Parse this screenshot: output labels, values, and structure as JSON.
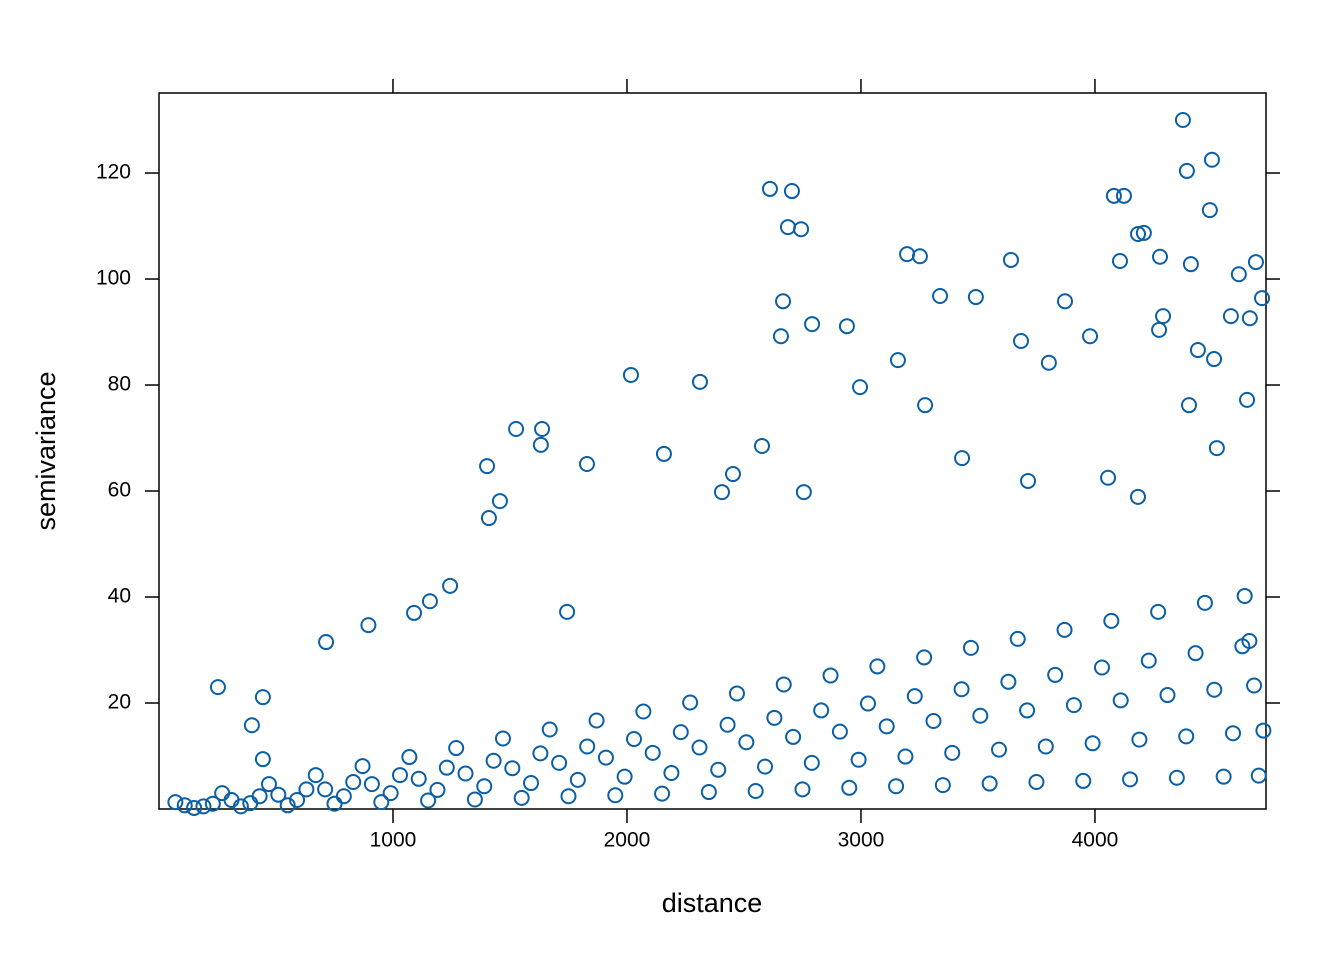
{
  "chart_data": {
    "type": "scatter",
    "xlabel": "distance",
    "ylabel": "semivariance",
    "xlim": [
      0,
      4731
    ],
    "ylim": [
      0,
      135.1
    ],
    "xticks": [
      1000,
      2000,
      3000,
      4000
    ],
    "yticks": [
      20,
      40,
      60,
      80,
      100,
      120
    ],
    "series": [
      {
        "color": "#0b5fa5",
        "x": [
          252,
          444,
          4376,
          4500,
          4393,
          4491,
          4081,
          4124,
          2611,
          2705,
          2688,
          2744,
          3197,
          3252,
          3641,
          4278,
          4410,
          4184,
          4209,
          4107,
          4688,
          4615,
          2667,
          2658,
          2791,
          2940,
          3338,
          3491,
          3872,
          2017,
          2312,
          2996,
          1637,
          1526,
          1632,
          1402,
          1829,
          1457,
          1410,
          2577,
          3274,
          3158,
          3684,
          3803,
          4274,
          4509,
          4662,
          4581,
          4714,
          4440,
          4291,
          3979,
          1244,
          1090,
          895,
          714,
          444,
          397,
          1158,
          1744,
          2158,
          2406,
          2756,
          2453,
          3432,
          3714,
          4056,
          4184,
          4402,
          4650,
          4521,
          150,
          190,
          110,
          230,
          70,
          350,
          390,
          310,
          430,
          270,
          550,
          590,
          510,
          630,
          470,
          750,
          790,
          710,
          830,
          670,
          950,
          990,
          910,
          1030,
          870,
          1150,
          1190,
          1110,
          1230,
          1070,
          1350,
          1390,
          1310,
          1430,
          1270,
          1550,
          1590,
          1510,
          1630,
          1470,
          1750,
          1790,
          1710,
          1830,
          1670,
          1950,
          1990,
          1910,
          2030,
          1870,
          2150,
          2190,
          2110,
          2230,
          2070,
          2350,
          2390,
          2310,
          2430,
          2270,
          2550,
          2590,
          2510,
          2630,
          2470,
          2750,
          2790,
          2710,
          2830,
          2670,
          2950,
          2990,
          2910,
          3030,
          2870,
          3150,
          3190,
          3110,
          3230,
          3070,
          3350,
          3390,
          3310,
          3430,
          3270,
          3550,
          3590,
          3510,
          3630,
          3470,
          3750,
          3790,
          3710,
          3830,
          3670,
          3950,
          3990,
          3910,
          4030,
          3870,
          4150,
          4190,
          4110,
          4230,
          4070,
          4350,
          4390,
          4310,
          4430,
          4270,
          4550,
          4590,
          4510,
          4630,
          4470,
          4700,
          4720,
          4680,
          4660,
          4640
        ],
        "values": [
          23,
          9.4,
          130,
          122.5,
          120.4,
          113,
          115.7,
          115.7,
          117,
          116.6,
          109.8,
          109.4,
          104.7,
          104.3,
          103.6,
          104.2,
          102.8,
          108.5,
          108.7,
          103.4,
          103.2,
          100.9,
          95.8,
          89.2,
          91.5,
          91.1,
          96.8,
          96.6,
          95.8,
          81.9,
          80.6,
          79.6,
          71.7,
          71.7,
          68.7,
          64.7,
          65.1,
          58.1,
          54.9,
          68.5,
          76.2,
          84.7,
          88.3,
          84.2,
          90.4,
          84.9,
          92.6,
          93,
          96.4,
          86.6,
          93,
          89.2,
          42.1,
          37,
          34.7,
          31.5,
          21.1,
          15.8,
          39.2,
          37.2,
          67,
          59.8,
          59.8,
          63.2,
          66.2,
          61.9,
          62.5,
          58.9,
          76.2,
          77.2,
          68.1,
          0.2,
          0.5,
          0.7,
          1.0,
          1.3,
          0.5,
          1.1,
          1.7,
          2.4,
          3.0,
          0.7,
          1.7,
          2.7,
          3.7,
          4.7,
          1.0,
          2.4,
          3.7,
          5.1,
          6.4,
          1.3,
          3.0,
          4.7,
          6.4,
          8.1,
          1.6,
          3.6,
          5.7,
          7.8,
          9.8,
          1.8,
          4.3,
          6.7,
          9.1,
          11.5,
          2.1,
          4.9,
          7.7,
          10.5,
          13.3,
          2.4,
          5.5,
          8.7,
          11.8,
          15.0,
          2.6,
          6.1,
          9.7,
          13.2,
          16.7,
          2.9,
          6.8,
          10.6,
          14.5,
          18.4,
          3.2,
          7.4,
          11.6,
          15.9,
          20.1,
          3.4,
          8.0,
          12.6,
          17.2,
          21.8,
          3.7,
          8.7,
          13.6,
          18.6,
          23.5,
          4.0,
          9.3,
          14.6,
          19.9,
          25.2,
          4.3,
          9.9,
          15.6,
          21.3,
          26.9,
          4.5,
          10.6,
          16.6,
          22.6,
          28.6,
          4.8,
          11.2,
          17.6,
          24.0,
          30.4,
          5.1,
          11.8,
          18.6,
          25.3,
          32.1,
          5.3,
          12.4,
          19.6,
          26.7,
          33.8,
          5.6,
          13.1,
          20.5,
          28.0,
          35.5,
          5.9,
          13.7,
          21.5,
          29.4,
          37.2,
          6.1,
          14.3,
          22.5,
          30.7,
          38.9,
          6.3,
          14.8,
          23.3,
          31.7,
          40.2
        ]
      }
    ]
  }
}
